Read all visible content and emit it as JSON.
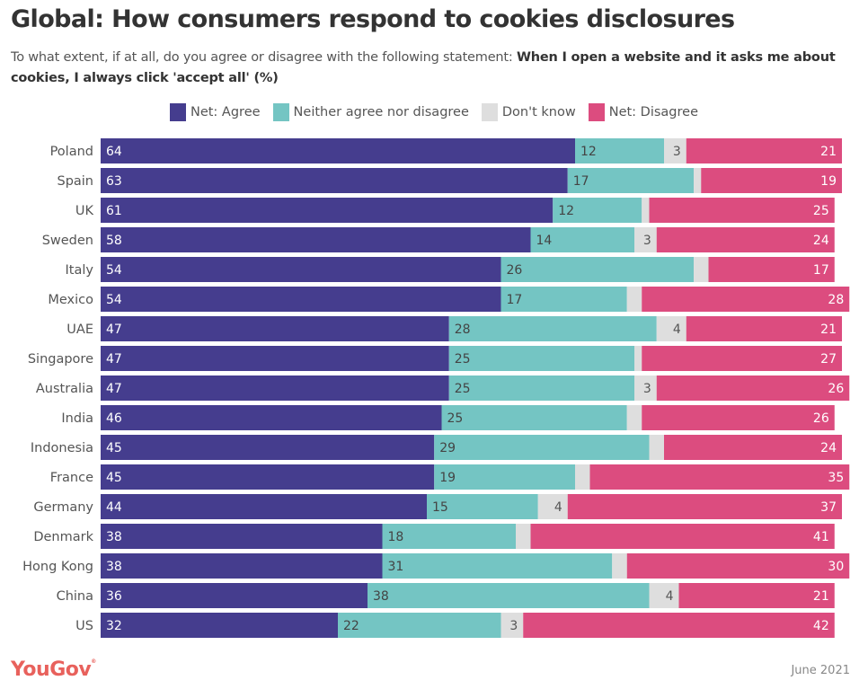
{
  "header": {
    "title": "Global: How consumers respond to cookies disclosures",
    "subtitle_plain": "To what extent, if at all, do you agree or disagree with the following statement: ",
    "subtitle_bold": "When I open a website and it asks me about cookies, I always click 'accept all' (%)"
  },
  "legend": [
    {
      "label": "Net: Agree",
      "color": "#453d8e"
    },
    {
      "label": "Neither agree nor disagree",
      "color": "#74c5c3"
    },
    {
      "label": "Don't know",
      "color": "#dedede"
    },
    {
      "label": "Net: Disagree",
      "color": "#dc4c7f"
    }
  ],
  "footer": {
    "logo": "YouGov",
    "date": "June 2021"
  },
  "chart_data": {
    "type": "bar",
    "orientation": "horizontal-stacked",
    "title": "Global: How consumers respond to cookies disclosures",
    "xlabel": "",
    "ylabel": "",
    "xlim": [
      0,
      100
    ],
    "unit": "%",
    "grid": false,
    "legend_position": "top-center",
    "categories": [
      "Poland",
      "Spain",
      "UK",
      "Sweden",
      "Italy",
      "Mexico",
      "UAE",
      "Singapore",
      "Australia",
      "India",
      "Indonesia",
      "France",
      "Germany",
      "Denmark",
      "Hong Kong",
      "China",
      "US"
    ],
    "series": [
      {
        "name": "Net: Agree",
        "color": "#453d8e",
        "label_color": "#ffffff",
        "values": [
          64,
          63,
          61,
          58,
          54,
          54,
          47,
          47,
          47,
          46,
          45,
          45,
          44,
          38,
          38,
          36,
          32
        ],
        "show_labels": [
          true,
          true,
          true,
          true,
          true,
          true,
          true,
          true,
          true,
          true,
          true,
          true,
          true,
          true,
          true,
          true,
          true
        ]
      },
      {
        "name": "Neither agree nor disagree",
        "color": "#74c5c3",
        "label_color": "#444444",
        "values": [
          12,
          17,
          12,
          14,
          26,
          17,
          28,
          25,
          25,
          25,
          29,
          19,
          15,
          18,
          31,
          38,
          22
        ],
        "show_labels": [
          true,
          true,
          true,
          true,
          true,
          true,
          true,
          true,
          true,
          true,
          true,
          true,
          true,
          true,
          true,
          true,
          true
        ]
      },
      {
        "name": "Don't know",
        "color": "#dedede",
        "label_color": "#555555",
        "values": [
          3,
          1,
          1,
          3,
          2,
          2,
          4,
          1,
          3,
          2,
          2,
          2,
          4,
          2,
          2,
          4,
          3
        ],
        "show_labels": [
          true,
          false,
          false,
          true,
          false,
          false,
          true,
          false,
          true,
          false,
          false,
          false,
          true,
          false,
          false,
          true,
          true
        ]
      },
      {
        "name": "Net: Disagree",
        "color": "#dc4c7f",
        "label_color": "#ffffff",
        "values": [
          21,
          19,
          25,
          24,
          17,
          28,
          21,
          27,
          26,
          26,
          24,
          35,
          37,
          41,
          30,
          21,
          42
        ],
        "show_labels": [
          true,
          true,
          true,
          true,
          true,
          true,
          true,
          true,
          true,
          true,
          true,
          true,
          true,
          true,
          true,
          true,
          true
        ]
      }
    ]
  }
}
